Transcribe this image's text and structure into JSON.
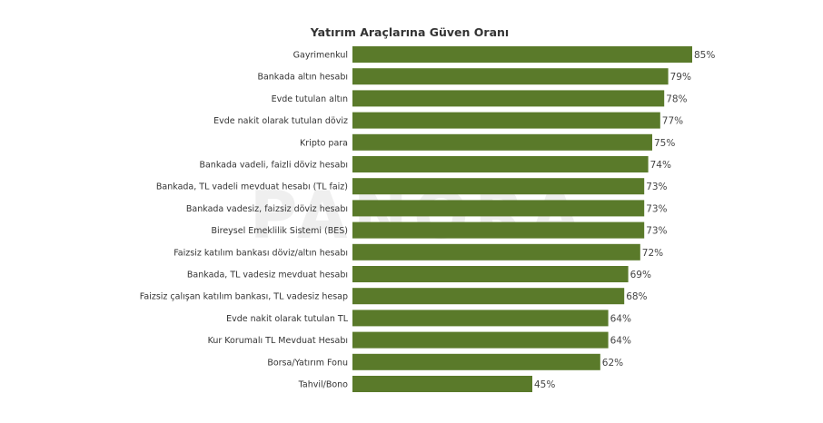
{
  "chart_data": {
    "type": "bar",
    "orientation": "horizontal",
    "title": "Yatırım Araçlarına Güven Oranı",
    "categories": [
      "Gayrimenkul",
      "Bankada altın hesabı",
      "Evde tutulan altın",
      "Evde nakit olarak tutulan döviz",
      "Kripto para",
      "Bankada vadeli, faizli döviz hesabı",
      "Bankada, TL vadeli mevduat hesabı (TL faiz)",
      "Bankada vadesiz, faizsiz döviz hesabı",
      "Bireysel Emeklilik Sistemi (BES)",
      "Faizsiz katılım bankası döviz/altın hesabı",
      "Bankada, TL vadesiz mevduat hesabı",
      "Faizsiz çalışan katılım bankası, TL vadesiz hesap",
      "Evde nakit olarak tutulan TL",
      "Kur Korumalı TL Mevduat Hesabı",
      "Borsa/Yatırım Fonu",
      "Tahvil/Bono"
    ],
    "values": [
      85,
      79,
      78,
      77,
      75,
      74,
      73,
      73,
      73,
      72,
      69,
      68,
      64,
      64,
      62,
      45
    ],
    "value_labels": [
      "85%",
      "79%",
      "78%",
      "77%",
      "75%",
      "74%",
      "73%",
      "73%",
      "73%",
      "72%",
      "69%",
      "68%",
      "64%",
      "64%",
      "62%",
      "45%"
    ],
    "xlim": [
      0,
      85
    ],
    "bar_color": "#5a7a2a",
    "grid": false,
    "legend": "none"
  },
  "watermark": "PANORA"
}
